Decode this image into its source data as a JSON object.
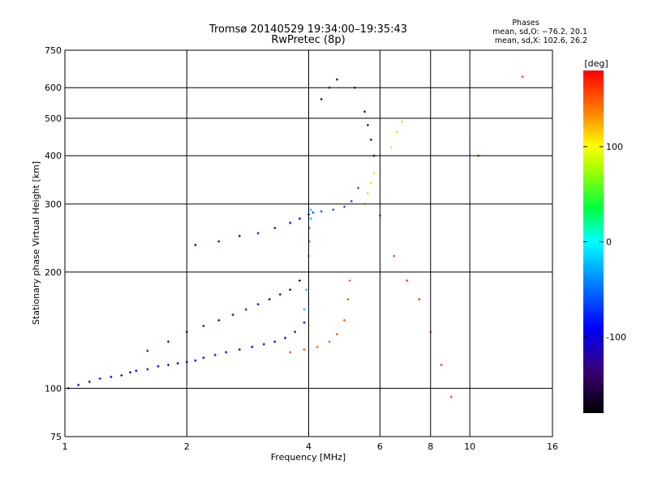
{
  "chart_data": {
    "type": "scatter",
    "title": "Tromsø 20140529 19:34:00–19:35:43",
    "subtitle": "RwPretec (8p)",
    "xlabel": "Frequency [MHz]",
    "ylabel": "Stationary phase Virtual Height [km]",
    "xscale": "log",
    "yscale": "log",
    "xlim": [
      1,
      16
    ],
    "ylim": [
      75,
      750
    ],
    "x_ticks": [
      1,
      2,
      4,
      6,
      8,
      10,
      16
    ],
    "y_ticks": [
      75,
      100,
      200,
      300,
      400,
      500,
      600,
      750
    ],
    "grid": true,
    "stats": {
      "heading": "Phases",
      "o_mode": "mean, sd,O: −76.2, 20.1",
      "x_mode": "mean, sd,X: 102.6, 26.2"
    },
    "colorbar": {
      "label": "[deg]",
      "range": [
        -180,
        180
      ],
      "ticks": [
        -100,
        0,
        100
      ],
      "colormap": "rainbow"
    },
    "series": [
      {
        "name": "",
        "color_phase": -90,
        "x": [
          1.02,
          1.08,
          1.15,
          1.22,
          1.3,
          1.38,
          1.45,
          1.5,
          1.6,
          1.7,
          1.8,
          1.9,
          2.0,
          2.1,
          2.2,
          2.35,
          2.5,
          2.7,
          2.9,
          3.1,
          3.3,
          3.5,
          3.7,
          3.9
        ],
        "y": [
          100,
          102,
          104,
          106,
          107,
          108,
          110,
          111,
          112,
          114,
          115,
          116,
          117,
          118,
          120,
          122,
          124,
          126,
          128,
          130,
          132,
          135,
          140,
          148
        ]
      },
      {
        "name": "",
        "color_phase": -20,
        "x": [
          3.9,
          3.95,
          4.0,
          4.0,
          4.02,
          4.02,
          4.05,
          4.05
        ],
        "y": [
          160,
          180,
          200,
          220,
          240,
          260,
          275,
          290
        ]
      },
      {
        "name": "",
        "color_phase": -110,
        "x": [
          1.6,
          1.8,
          2.0,
          2.2,
          2.4,
          2.6,
          2.8,
          3.0,
          3.2,
          3.4,
          3.6,
          3.8
        ],
        "y": [
          125,
          132,
          140,
          145,
          150,
          155,
          160,
          165,
          170,
          175,
          180,
          190
        ]
      },
      {
        "name": "",
        "color_phase": -100,
        "x": [
          2.1,
          2.4,
          2.7,
          3.0,
          3.3,
          3.6,
          3.8,
          4.0
        ],
        "y": [
          235,
          240,
          248,
          252,
          260,
          268,
          275,
          282
        ]
      },
      {
        "name": "",
        "color_phase": 150,
        "x": [
          3.6,
          3.9,
          4.2,
          4.5,
          4.7,
          4.9,
          5.0,
          5.05
        ],
        "y": [
          124,
          126,
          128,
          132,
          138,
          150,
          170,
          190
        ]
      },
      {
        "name": "",
        "color_phase": -60,
        "x": [
          4.1,
          4.3,
          4.6,
          4.9,
          5.1,
          5.3
        ],
        "y": [
          285,
          287,
          290,
          295,
          305,
          330
        ]
      },
      {
        "name": "",
        "color_phase": -130,
        "x": [
          4.3,
          4.5,
          4.7,
          5.2,
          5.5,
          5.6,
          5.7,
          5.8
        ],
        "y": [
          560,
          600,
          630,
          600,
          520,
          480,
          440,
          400
        ]
      },
      {
        "name": "",
        "color_phase": 80,
        "x": [
          5.5,
          5.6,
          5.7,
          5.8,
          6.4,
          6.6,
          6.8
        ],
        "y": [
          300,
          320,
          340,
          360,
          420,
          460,
          490
        ]
      },
      {
        "name": "",
        "color_phase": 160,
        "x": [
          6.0,
          6.5,
          7.0,
          7.5,
          8.0,
          8.5,
          9.0,
          10.5,
          13.5
        ],
        "y": [
          280,
          220,
          190,
          170,
          140,
          115,
          95,
          400,
          640
        ]
      }
    ]
  }
}
